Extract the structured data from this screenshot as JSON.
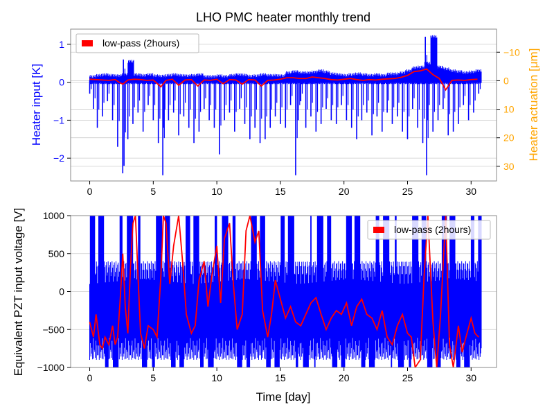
{
  "chart_data": [
    {
      "type": "line",
      "title": "LHO PMC heater monthly trend",
      "xlabel": "",
      "ylabel": "Heater input [K]",
      "ylabel_right": "Heater actuation [μm]",
      "xlim": [
        -1.5,
        32
      ],
      "ylim": [
        -2.6,
        1.4
      ],
      "ylim_right": [
        35.14,
        -18.09
      ],
      "xticks": [
        "0",
        "5",
        "10",
        "15",
        "20",
        "25",
        "30"
      ],
      "yticks": [
        "1",
        "0",
        "−1",
        "−2"
      ],
      "yticks_right": [
        "−10",
        "0",
        "10",
        "20",
        "30"
      ],
      "grid": true,
      "legend": {
        "placement": "top-left",
        "entries": [
          "low-pass (2hours)"
        ]
      },
      "colors": {
        "raw": "#0000ff",
        "lowpass": "#ff0000",
        "left_axis": "#0000ff",
        "right_axis": "#ffa500"
      },
      "series": [
        {
          "name": "low-pass (2hours)",
          "x": [
            0,
            0.5,
            1,
            1.5,
            2,
            2.3,
            2.6,
            3,
            3.5,
            4,
            4.5,
            5,
            5.6,
            6,
            6.5,
            7,
            7.5,
            8,
            8.5,
            9,
            9.5,
            10,
            10.5,
            11,
            11.5,
            12,
            12.5,
            13,
            13.5,
            14,
            14.5,
            15,
            15.5,
            16,
            16.5,
            17,
            17.5,
            18,
            18.5,
            19,
            19.5,
            20,
            20.5,
            21,
            21.5,
            22,
            22.5,
            23,
            23.5,
            24,
            24.5,
            25,
            25.5,
            26,
            26.5,
            27,
            27.5,
            28,
            28.5,
            29,
            29.5,
            30,
            30.5
          ],
          "y": [
            0.08,
            0.07,
            0.06,
            0.05,
            0.07,
            0.0,
            -0.05,
            0.06,
            0.08,
            0.07,
            0.05,
            0.06,
            -0.12,
            0.05,
            0.08,
            -0.08,
            0.06,
            0.07,
            -0.1,
            0.06,
            0.05,
            0.08,
            -0.04,
            0.07,
            0.06,
            -0.05,
            0.07,
            0.06,
            -0.1,
            0.05,
            0.06,
            0.08,
            0.12,
            0.12,
            0.1,
            0.1,
            0.14,
            0.12,
            0.1,
            0.07,
            0.06,
            0.08,
            0.1,
            0.07,
            0.05,
            0.07,
            0.06,
            0.08,
            0.09,
            0.1,
            0.13,
            0.18,
            0.28,
            0.3,
            0.35,
            0.2,
            0.1,
            -0.2,
            0.05,
            0.06,
            0.05,
            0.07,
            0.08
          ]
        },
        {
          "name": "",
          "values_desc": "",
          "x": [
            0,
            0.3,
            0.6,
            1,
            1.4,
            1.8,
            2.2,
            2.6,
            2.65,
            2.7,
            3,
            3.4,
            3.8,
            4.2,
            4.6,
            5,
            5.4,
            5.75,
            5.8,
            6.2,
            6.6,
            7,
            7.4,
            7.8,
            8.2,
            8.6,
            9,
            9.4,
            9.8,
            10.2,
            10.6,
            11,
            11.4,
            11.8,
            12.2,
            12.6,
            13,
            13.4,
            13.8,
            14.2,
            14.6,
            15,
            15.4,
            15.8,
            16.2,
            16.4,
            16.6,
            17,
            17.4,
            17.8,
            18.2,
            18.6,
            19,
            19.4,
            19.8,
            20.2,
            20.6,
            21,
            21.4,
            21.8,
            22.2,
            22.6,
            23,
            23.4,
            23.8,
            24.2,
            24.6,
            25,
            25.4,
            25.8,
            26.2,
            26.4,
            26.5,
            26.6,
            27,
            27.4,
            27.8,
            28.2,
            28.6,
            29,
            29.4,
            29.8,
            30.2,
            30.6
          ],
          "y": [
            -0.3,
            -0.7,
            -1.2,
            -0.9,
            -0.5,
            -1.0,
            -1.7,
            -2.4,
            0.6,
            -2.2,
            -1.5,
            -1.1,
            -0.8,
            -1.3,
            -0.6,
            -1.0,
            -1.6,
            -2.45,
            -1.2,
            -1.0,
            -0.8,
            -1.4,
            -0.9,
            -1.2,
            -1.6,
            -1.3,
            -0.7,
            -1.0,
            -1.2,
            -1.9,
            -1.0,
            -0.8,
            -1.3,
            -0.7,
            -1.1,
            -1.5,
            -1.2,
            -1.6,
            -1.5,
            -1.2,
            -0.9,
            -1.1,
            -1.2,
            -0.6,
            -2.45,
            -1.0,
            -0.5,
            -1.2,
            -0.9,
            -1.3,
            -1.1,
            -0.7,
            -1.0,
            -1.1,
            -0.6,
            -1.0,
            -1.2,
            -1.5,
            -1.0,
            -0.8,
            -1.4,
            -0.9,
            -1.3,
            -0.8,
            -1.1,
            -0.9,
            -1.3,
            -1.5,
            -0.7,
            -1.2,
            -1.6,
            1.2,
            -2.45,
            -1.0,
            -1.3,
            -1.0,
            -0.7,
            -1.4,
            -1.3,
            -1.1,
            -0.6,
            -1.0,
            -0.8,
            -0.3
          ],
          "top_envelope": [
            0.15,
            0.18,
            0.2,
            0.18,
            0.17,
            0.2,
            0.55,
            0.2,
            0.18,
            0.2,
            0.17,
            0.16,
            0.18,
            0.2,
            0.18,
            0.17,
            0.18,
            0.2,
            0.15,
            0.15,
            0.17,
            0.15,
            0.18,
            0.2,
            0.19,
            0.16,
            0.17,
            0.2,
            0.18,
            0.18,
            0.17,
            0.25,
            0.28,
            0.25,
            0.25,
            0.27,
            0.3,
            0.27,
            0.22,
            0.2,
            0.18,
            0.2,
            0.22,
            0.2,
            0.18,
            0.2,
            0.18,
            0.22,
            0.22,
            0.25,
            0.3,
            0.38,
            0.4,
            0.5,
            1.2,
            0.4,
            0.35,
            0.3,
            0.28,
            0.25,
            0.27,
            0.3,
            0.28
          ]
        }
      ]
    },
    {
      "type": "line",
      "title": "",
      "xlabel": "Time [day]",
      "ylabel": "Equivalent PZT input voltage [V]",
      "xlim": [
        -1.5,
        32
      ],
      "ylim": [
        -1000,
        1000
      ],
      "xticks": [
        "0",
        "5",
        "10",
        "15",
        "20",
        "25",
        "30"
      ],
      "yticks": [
        "1000",
        "500",
        "0",
        "−500",
        "−1000"
      ],
      "grid": true,
      "legend": {
        "placement": "top-right",
        "entries": [
          "low-pass (2hours)"
        ]
      },
      "colors": {
        "raw": "#0000ff",
        "lowpass": "#ff0000"
      },
      "series": [
        {
          "name": "low-pass (2hours)",
          "x": [
            0,
            0.3,
            0.5,
            0.8,
            1,
            1.2,
            1.5,
            1.8,
            2,
            2.2,
            2.4,
            2.6,
            2.8,
            3,
            3.2,
            3.4,
            3.6,
            3.8,
            4,
            4.3,
            4.6,
            5,
            5.3,
            5.6,
            5.8,
            6,
            6.3,
            6.6,
            7,
            7.3,
            7.6,
            8,
            8.3,
            8.6,
            9,
            9.3,
            9.6,
            10,
            10.3,
            10.6,
            11,
            11.3,
            11.6,
            12,
            12.3,
            12.6,
            13,
            13.3,
            13.6,
            14,
            14.3,
            14.6,
            15,
            15.4,
            15.8,
            16.2,
            16.6,
            17,
            17.4,
            17.8,
            18.2,
            18.6,
            19,
            19.4,
            19.8,
            20.2,
            20.6,
            21,
            21.4,
            21.8,
            22.2,
            22.6,
            23,
            23.4,
            23.8,
            24.2,
            24.6,
            25,
            25.3,
            25.6,
            26,
            26.3,
            26.6,
            27,
            27.3,
            27.6,
            28,
            28.3,
            28.6,
            29,
            29.3,
            29.6,
            30,
            30.3,
            30.6
          ],
          "y": [
            -400,
            -600,
            -300,
            -700,
            -750,
            -600,
            -700,
            -450,
            -700,
            -600,
            -100,
            500,
            -200,
            -550,
            300,
            900,
            1000,
            200,
            -550,
            -750,
            -450,
            -500,
            -600,
            200,
            1000,
            900,
            100,
            600,
            1000,
            400,
            -300,
            -550,
            -450,
            150,
            400,
            -200,
            200,
            600,
            -150,
            700,
            900,
            100,
            -500,
            -300,
            800,
            1000,
            650,
            800,
            -250,
            -600,
            -300,
            150,
            -100,
            -350,
            -200,
            -400,
            -450,
            -300,
            -150,
            -80,
            -300,
            -500,
            -350,
            -250,
            -300,
            -150,
            -450,
            -200,
            -100,
            -300,
            -350,
            -500,
            -250,
            -600,
            -700,
            -450,
            -300,
            -550,
            -600,
            -1000,
            -900,
            200,
            1000,
            -400,
            -1000,
            -300,
            1000,
            -700,
            -1000,
            -450,
            -800,
            -600,
            -350,
            -550,
            -600
          ]
        },
        {
          "name": "",
          "values_desc": "",
          "x": [
            0,
            30.8
          ],
          "y": [
            -1000,
            1000
          ]
        }
      ]
    }
  ]
}
